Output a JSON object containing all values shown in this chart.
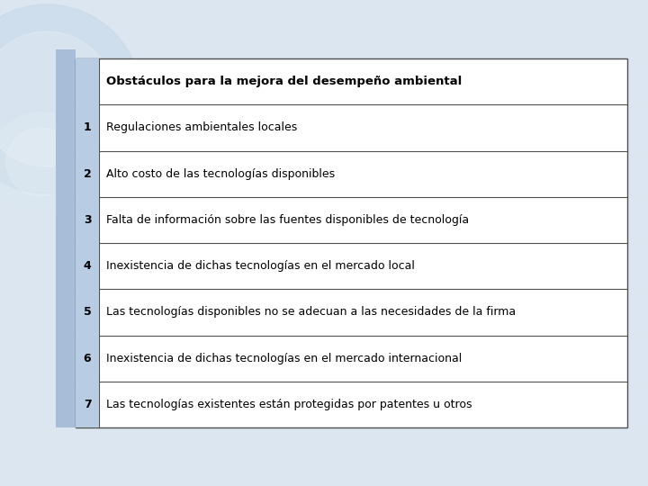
{
  "header": "Obstáculos para la mejora del desempeño ambiental",
  "rows": [
    {
      "num": "1",
      "text": "Regulaciones ambientales locales"
    },
    {
      "num": "2",
      "text": "Alto costo de las tecnologías disponibles"
    },
    {
      "num": "3",
      "text": "Falta de información sobre las fuentes disponibles de tecnología"
    },
    {
      "num": "4",
      "text": "Inexistencia de dichas tecnologías en el mercado local"
    },
    {
      "num": "5",
      "text": "Las tecnologías disponibles no se adecuan a las necesidades de la firma"
    },
    {
      "num": "6",
      "text": "Inexistencia de dichas tecnologías en el mercado internacional"
    },
    {
      "num": "7",
      "text": "Las tecnologías existentes están protegidas por patentes u otros"
    }
  ],
  "table_bg": "#ffffff",
  "left_col_color": "#b8cce4",
  "border_color": "#505050",
  "header_font_size": 9.5,
  "row_font_size": 9,
  "num_font_size": 9,
  "slide_bg": "#dce6f1",
  "left_bar_color": "#a8bed8",
  "circle_color_1": "#c5d8e8",
  "circle_color_2": "#d8e6f0",
  "fig_width": 7.2,
  "fig_height": 5.4
}
